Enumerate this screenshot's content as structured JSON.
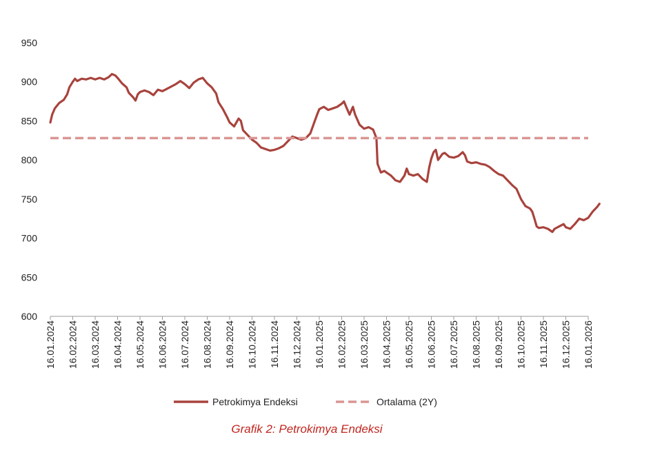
{
  "caption": "Grafik 2: Petrokimya Endeksi",
  "colors": {
    "series": "#a8433d",
    "average": "#d99593",
    "caption": "#c0261f",
    "axis": "#999999"
  },
  "chart_data": {
    "type": "line",
    "title": "",
    "xlabel": "",
    "ylabel": "",
    "ylim": [
      600,
      950
    ],
    "yticks": [
      600,
      650,
      700,
      750,
      800,
      850,
      900,
      950
    ],
    "x_tick_labels": [
      "16.01.2024",
      "16.02.2024",
      "16.03.2024",
      "16.04.2024",
      "16.05.2024",
      "16.06.2024",
      "16.07.2024",
      "16.08.2024",
      "16.09.2024",
      "16.10.2024",
      "16.11.2024",
      "16.12.2024",
      "16.01.2025",
      "16.02.2025",
      "16.03.2025",
      "16.04.2025",
      "16.05.2025",
      "16.06.2025",
      "16.07.2025",
      "16.08.2025",
      "16.09.2025",
      "16.10.2025",
      "16.11.2025",
      "16.12.2025",
      "16.01.2026"
    ],
    "legend_position": "bottom",
    "series": [
      {
        "name": "Petrokimya Endeksi",
        "style": "solid",
        "points": [
          [
            0,
            848
          ],
          [
            0.08,
            858
          ],
          [
            0.2,
            866
          ],
          [
            0.4,
            873
          ],
          [
            0.6,
            877
          ],
          [
            0.75,
            884
          ],
          [
            0.85,
            893
          ],
          [
            1.0,
            900
          ],
          [
            1.1,
            904
          ],
          [
            1.2,
            901
          ],
          [
            1.4,
            904
          ],
          [
            1.6,
            903
          ],
          [
            1.8,
            905
          ],
          [
            2.0,
            903
          ],
          [
            2.2,
            905
          ],
          [
            2.4,
            903
          ],
          [
            2.6,
            906
          ],
          [
            2.75,
            910
          ],
          [
            2.9,
            908
          ],
          [
            3.0,
            905
          ],
          [
            3.2,
            898
          ],
          [
            3.4,
            893
          ],
          [
            3.5,
            886
          ],
          [
            3.6,
            883
          ],
          [
            3.7,
            880
          ],
          [
            3.8,
            876
          ],
          [
            3.9,
            884
          ],
          [
            4.0,
            887
          ],
          [
            4.2,
            889
          ],
          [
            4.4,
            887
          ],
          [
            4.6,
            883
          ],
          [
            4.8,
            890
          ],
          [
            5.0,
            888
          ],
          [
            5.2,
            891
          ],
          [
            5.4,
            894
          ],
          [
            5.6,
            897
          ],
          [
            5.8,
            901
          ],
          [
            6.0,
            897
          ],
          [
            6.2,
            892
          ],
          [
            6.4,
            899
          ],
          [
            6.6,
            903
          ],
          [
            6.8,
            905
          ],
          [
            7.0,
            898
          ],
          [
            7.2,
            893
          ],
          [
            7.4,
            885
          ],
          [
            7.5,
            874
          ],
          [
            7.7,
            865
          ],
          [
            7.9,
            854
          ],
          [
            8.0,
            848
          ],
          [
            8.2,
            843
          ],
          [
            8.3,
            848
          ],
          [
            8.4,
            853
          ],
          [
            8.5,
            850
          ],
          [
            8.6,
            838
          ],
          [
            8.8,
            832
          ],
          [
            9.0,
            826
          ],
          [
            9.2,
            822
          ],
          [
            9.4,
            816
          ],
          [
            9.6,
            814
          ],
          [
            9.8,
            812
          ],
          [
            10.0,
            813
          ],
          [
            10.2,
            815
          ],
          [
            10.4,
            818
          ],
          [
            10.6,
            824
          ],
          [
            10.8,
            830
          ],
          [
            11.0,
            828
          ],
          [
            11.2,
            826
          ],
          [
            11.4,
            828
          ],
          [
            11.6,
            834
          ],
          [
            11.8,
            850
          ],
          [
            11.9,
            858
          ],
          [
            12.0,
            865
          ],
          [
            12.2,
            868
          ],
          [
            12.4,
            864
          ],
          [
            12.6,
            866
          ],
          [
            12.8,
            868
          ],
          [
            13.0,
            872
          ],
          [
            13.1,
            875
          ],
          [
            13.2,
            868
          ],
          [
            13.35,
            858
          ],
          [
            13.5,
            868
          ],
          [
            13.6,
            858
          ],
          [
            13.8,
            845
          ],
          [
            14.0,
            840
          ],
          [
            14.2,
            842
          ],
          [
            14.4,
            839
          ],
          [
            14.55,
            828
          ],
          [
            14.6,
            795
          ],
          [
            14.75,
            784
          ],
          [
            14.9,
            786
          ],
          [
            15.0,
            784
          ],
          [
            15.2,
            780
          ],
          [
            15.4,
            774
          ],
          [
            15.6,
            772
          ],
          [
            15.8,
            780
          ],
          [
            15.9,
            789
          ],
          [
            16.0,
            782
          ],
          [
            16.2,
            780
          ],
          [
            16.4,
            782
          ],
          [
            16.6,
            776
          ],
          [
            16.8,
            772
          ],
          [
            16.9,
            790
          ],
          [
            17.0,
            802
          ],
          [
            17.1,
            810
          ],
          [
            17.2,
            813
          ],
          [
            17.3,
            800
          ],
          [
            17.5,
            808
          ],
          [
            17.6,
            809
          ],
          [
            17.8,
            804
          ],
          [
            18.0,
            803
          ],
          [
            18.2,
            805
          ],
          [
            18.4,
            810
          ],
          [
            18.5,
            806
          ],
          [
            18.6,
            798
          ],
          [
            18.8,
            796
          ],
          [
            19.0,
            797
          ],
          [
            19.2,
            795
          ],
          [
            19.4,
            794
          ],
          [
            19.6,
            791
          ],
          [
            19.8,
            786
          ],
          [
            20.0,
            782
          ],
          [
            20.2,
            780
          ],
          [
            20.4,
            774
          ],
          [
            20.6,
            768
          ],
          [
            20.8,
            763
          ],
          [
            21.0,
            750
          ],
          [
            21.2,
            741
          ],
          [
            21.4,
            738
          ],
          [
            21.5,
            734
          ],
          [
            21.6,
            725
          ],
          [
            21.7,
            715
          ],
          [
            21.8,
            713
          ],
          [
            22.0,
            714
          ],
          [
            22.2,
            712
          ],
          [
            22.4,
            708
          ],
          [
            22.5,
            712
          ],
          [
            22.7,
            715
          ],
          [
            22.9,
            718
          ],
          [
            23.0,
            714
          ],
          [
            23.2,
            712
          ],
          [
            23.4,
            718
          ],
          [
            23.6,
            725
          ],
          [
            23.8,
            723
          ],
          [
            24.0,
            726
          ],
          [
            24.2,
            734
          ],
          [
            24.4,
            740
          ],
          [
            24.5,
            744
          ]
        ]
      },
      {
        "name": "Ortalama (2Y)",
        "style": "dashed",
        "value": 828,
        "x_range": [
          0,
          24
        ]
      }
    ]
  }
}
